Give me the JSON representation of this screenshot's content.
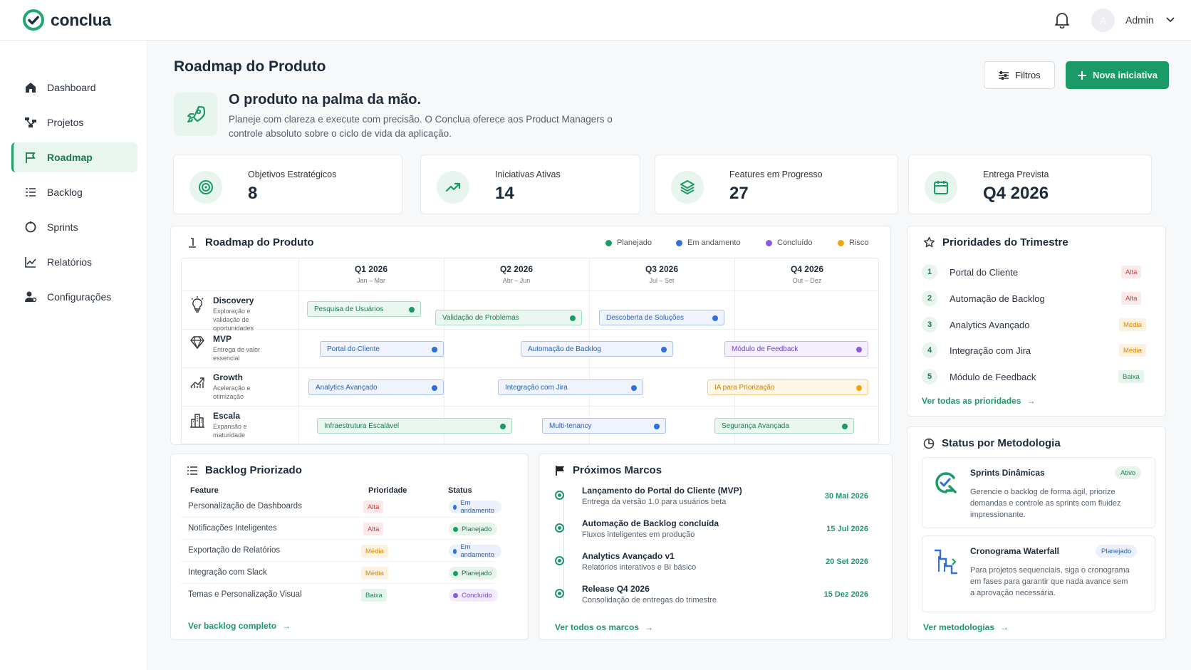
{
  "app": {
    "name": "conclua",
    "user": "Admin",
    "avatar_initial": "A"
  },
  "colors": {
    "primary": "#1a9a66",
    "planned": "#1a9a66",
    "in_progress": "#2f6fde",
    "done": "#8a5ae0",
    "risk": "#f0a70d"
  },
  "sidebar": {
    "items": [
      {
        "label": "Dashboard",
        "icon": "home-icon"
      },
      {
        "label": "Projetos",
        "icon": "projects-icon"
      },
      {
        "label": "Roadmap",
        "icon": "flag-icon",
        "active": true
      },
      {
        "label": "Backlog",
        "icon": "list-icon"
      },
      {
        "label": "Sprints",
        "icon": "cycle-icon"
      },
      {
        "label": "Relatórios",
        "icon": "chart-icon"
      },
      {
        "label": "Configurações",
        "icon": "user-gear-icon"
      }
    ]
  },
  "header": {
    "title": "Roadmap do Produto",
    "filter_label": "Filtros",
    "new_label": "Nova iniciativa"
  },
  "hero": {
    "title": "O produto na palma da mão.",
    "desc": "Planeje com clareza e execute com precisão. O Conclua oferece aos Product Managers o controle absoluto sobre o ciclo de vida da aplicação."
  },
  "stats": [
    {
      "label": "Objetivos Estratégicos",
      "value": "8"
    },
    {
      "label": "Iniciativas Ativas",
      "value": "14"
    },
    {
      "label": "Features em Progresso",
      "value": "27"
    },
    {
      "label": "Entrega Prevista",
      "value": "Q4 2026"
    }
  ],
  "roadmap": {
    "title": "Roadmap do Produto",
    "legend": [
      "Planejado",
      "Em andamento",
      "Concluído",
      "Risco"
    ],
    "quarters": [
      {
        "name": "Q1 2026",
        "range": "Jan – Mar"
      },
      {
        "name": "Q2 2026",
        "range": "Abr – Jun"
      },
      {
        "name": "Q3 2026",
        "range": "Jul – Set"
      },
      {
        "name": "Q4 2026",
        "range": "Out – Dez"
      }
    ],
    "phases": [
      {
        "name": "Discovery",
        "desc": "Exploração e validação de oportunidades"
      },
      {
        "name": "MVP",
        "desc": "Entrega de valor essencial"
      },
      {
        "name": "Growth",
        "desc": "Aceleração e otimização"
      },
      {
        "name": "Escala",
        "desc": "Expansão e maturidade"
      }
    ],
    "bars": [
      "Pesquisa de Usuários",
      "Validação de Problemas",
      "Descoberta de Soluções",
      "Portal do Cliente",
      "Automação de Backlog",
      "Módulo de Feedback",
      "Analytics Avançado",
      "Integração com Jira",
      "IA para Priorização",
      "Infraestrutura Escalável",
      "Multi-tenancy",
      "Segurança Avançada"
    ]
  },
  "priorities": {
    "title": "Prioridades do Trimestre",
    "items": [
      {
        "num": "1",
        "name": "Portal do Cliente",
        "level": "Alta"
      },
      {
        "num": "2",
        "name": "Automação de Backlog",
        "level": "Alta"
      },
      {
        "num": "3",
        "name": "Analytics Avançado",
        "level": "Média"
      },
      {
        "num": "4",
        "name": "Integração com Jira",
        "level": "Média"
      },
      {
        "num": "5",
        "name": "Módulo de Feedback",
        "level": "Baixa"
      }
    ],
    "link": "Ver todas as prioridades"
  },
  "backlog": {
    "title": "Backlog Priorizado",
    "headers": [
      "Feature",
      "Prioridade",
      "Status"
    ],
    "rows": [
      {
        "feature": "Personalização de Dashboards",
        "priority": "Alta",
        "status": "Em andamento"
      },
      {
        "feature": "Notificações Inteligentes",
        "priority": "Alta",
        "status": "Planejado"
      },
      {
        "feature": "Exportação de Relatórios",
        "priority": "Média",
        "status": "Em andamento"
      },
      {
        "feature": "Integração com Slack",
        "priority": "Média",
        "status": "Planejado"
      },
      {
        "feature": "Temas e Personalização Visual",
        "priority": "Baixa",
        "status": "Concluído"
      }
    ],
    "link": "Ver backlog completo"
  },
  "milestones": {
    "title": "Próximos Marcos",
    "items": [
      {
        "title": "Lançamento do Portal do Cliente (MVP)",
        "desc": "Entrega da versão 1.0 para usuários beta",
        "date": "30 Mai 2026"
      },
      {
        "title": "Automação de Backlog concluída",
        "desc": "Fluxos inteligentes em produção",
        "date": "15 Jul 2026"
      },
      {
        "title": "Analytics Avançado v1",
        "desc": "Relatórios interativos e BI básico",
        "date": "20 Set 2026"
      },
      {
        "title": "Release Q4 2026",
        "desc": "Consolidação de entregas do trimestre",
        "date": "15 Dez 2026"
      }
    ],
    "link": "Ver todos os marcos"
  },
  "methodology": {
    "title": "Status por Metodologia",
    "items": [
      {
        "title": "Sprints Dinâmicas",
        "badge": "Ativo",
        "desc": "Gerencie o backlog de forma ágil, priorize demandas e controle as sprints com fluidez impressionante."
      },
      {
        "title": "Cronograma Waterfall",
        "badge": "Planejado",
        "desc": "Para projetos sequenciais, siga o cronograma em fases para garantir que nada avance sem a aprovação necessária."
      }
    ],
    "link": "Ver metodologias"
  }
}
